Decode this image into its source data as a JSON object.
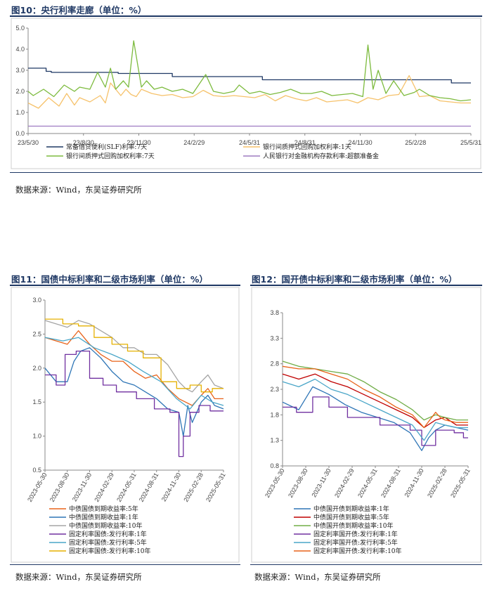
{
  "figures": {
    "fig10": {
      "title": "图10：央行利率走廊（单位：%）",
      "source": "数据来源：Wind，东吴证券研究所"
    },
    "fig11": {
      "title": "图11：国债中标利率和二级市场利率（单位：%）",
      "source": "数据来源：Wind，东吴证券研究所"
    },
    "fig12": {
      "title": "图12：国开债中标利率和二级市场利率（单位：%）",
      "source": "数据来源：Wind，东吴证券研究所"
    }
  },
  "colors": {
    "slf": "#1f3864",
    "repo_1d": "#f6c26b",
    "repo_7d": "#7dbb3e",
    "rrr": "#9e7cc1",
    "orange": "#e8631a",
    "blue": "#2e75b6",
    "gray": "#a5a5a5",
    "purple": "#7030a0",
    "lightblue": "#4aa6c8",
    "gold": "#e5b100",
    "red": "#c00000",
    "green": "#70ad47",
    "rule": "#1f3864"
  },
  "chart_data": [
    {
      "id": "fig10",
      "type": "line",
      "title": "央行利率走廊（单位：%）",
      "x_ticks": [
        "23/5/30",
        "23/8/30",
        "23/11/30",
        "24/2/29",
        "24/5/31",
        "24/8/31",
        "24/11/30",
        "25/2/28",
        "25/5/31"
      ],
      "ylim": [
        0,
        5
      ],
      "y_ticks": [
        "0.0",
        "1.0",
        "2.0",
        "3.0",
        "4.0",
        "5.0"
      ],
      "series": [
        {
          "name": "常备借贷便利(SLF)利率:7天",
          "color_key": "slf",
          "x": [
            0,
            0.35,
            0.35,
            0.45,
            0.45,
            1.0,
            1.0,
            1.75,
            1.75,
            2.8,
            2.8,
            4.55,
            4.55,
            8.22,
            8.22,
            8.6
          ],
          "values": [
            3.1,
            3.1,
            2.95,
            2.95,
            2.9,
            2.9,
            2.9,
            2.9,
            2.85,
            2.85,
            2.7,
            2.7,
            2.55,
            2.55,
            2.4,
            2.4
          ]
        },
        {
          "name": "银行间质押式回购加权利率:1天",
          "color_key": "repo_1d",
          "x": [
            0,
            0.2,
            0.4,
            0.6,
            0.75,
            0.9,
            1.0,
            1.2,
            1.4,
            1.5,
            1.6,
            1.8,
            1.9,
            2.0,
            2.1,
            2.2,
            2.4,
            2.6,
            2.8,
            3.0,
            3.2,
            3.4,
            3.6,
            3.8,
            4.0,
            4.2,
            4.4,
            4.6,
            4.8,
            5.0,
            5.2,
            5.4,
            5.6,
            5.8,
            6.0,
            6.2,
            6.4,
            6.6,
            6.8,
            7.0,
            7.2,
            7.4,
            7.6,
            7.8,
            8.0,
            8.2,
            8.4,
            8.6
          ],
          "values": [
            1.45,
            1.2,
            1.7,
            1.3,
            1.9,
            1.35,
            1.7,
            1.5,
            1.8,
            1.45,
            2.4,
            1.8,
            2.1,
            1.85,
            1.75,
            2.1,
            1.9,
            1.8,
            1.85,
            1.7,
            1.75,
            2.05,
            1.8,
            1.75,
            1.8,
            1.75,
            1.7,
            1.85,
            1.55,
            1.8,
            1.65,
            1.55,
            1.7,
            1.5,
            1.55,
            1.6,
            1.45,
            1.7,
            1.6,
            1.8,
            1.85,
            2.75,
            1.75,
            1.8,
            1.55,
            1.5,
            1.45,
            1.45
          ]
        },
        {
          "name": "银行间质押式回购加权利率:7天",
          "color_key": "repo_7d",
          "x": [
            0,
            0.1,
            0.3,
            0.5,
            0.7,
            0.9,
            1.0,
            1.2,
            1.35,
            1.5,
            1.6,
            1.7,
            1.85,
            1.95,
            2.05,
            2.2,
            2.3,
            2.45,
            2.6,
            2.8,
            3.0,
            3.2,
            3.45,
            3.6,
            3.8,
            4.0,
            4.1,
            4.3,
            4.5,
            4.7,
            4.9,
            5.1,
            5.3,
            5.5,
            5.7,
            5.9,
            6.1,
            6.3,
            6.5,
            6.6,
            6.7,
            6.8,
            6.95,
            7.1,
            7.3,
            7.5,
            7.6,
            7.8,
            8.0,
            8.2,
            8.4,
            8.6
          ],
          "values": [
            2.0,
            1.8,
            2.1,
            1.75,
            2.3,
            2.0,
            2.2,
            2.1,
            2.9,
            2.2,
            3.1,
            2.1,
            2.5,
            2.2,
            4.4,
            2.2,
            2.5,
            2.1,
            2.2,
            2.0,
            2.1,
            1.9,
            2.8,
            2.0,
            1.9,
            2.0,
            2.3,
            1.9,
            2.0,
            1.85,
            1.95,
            2.1,
            1.9,
            1.9,
            2.0,
            1.8,
            1.85,
            1.9,
            1.75,
            4.2,
            2.1,
            3.0,
            1.9,
            2.5,
            1.8,
            1.95,
            2.1,
            1.8,
            1.7,
            1.65,
            1.55,
            1.6
          ]
        },
        {
          "name": "人民银行对金融机构存款利率:超额准备金",
          "color_key": "rrr",
          "x": [
            0,
            8.6
          ],
          "values": [
            0.35,
            0.35
          ]
        }
      ],
      "legend": [
        "常备借贷便利(SLF)利率:7天",
        "银行间质押式回购加权利率:1天",
        "银行间质押式回购加权利率:7天",
        "人民银行对金融机构存款利率:超额准备金"
      ]
    },
    {
      "id": "fig11",
      "type": "line",
      "title": "国债中标利率和二级市场利率（单位：%）",
      "x_ticks": [
        "2023-05-30",
        "2023-08-30",
        "2023-11-30",
        "2024-02-29",
        "2024-05-31",
        "2024-08-31",
        "2024-11-30",
        "2025-02-28",
        "2025-05-31"
      ],
      "ylim": [
        0.5,
        3.0
      ],
      "y_ticks": [
        "0.5",
        "1.0",
        "1.5",
        "2.0",
        "2.5",
        "3.0"
      ],
      "series": [
        {
          "name": "中债国债到期收益率:5年",
          "color_key": "orange",
          "x": [
            0,
            0.5,
            1.0,
            1.5,
            2.0,
            2.5,
            3.0,
            3.5,
            4.0,
            4.5,
            5.0,
            5.5,
            6.0,
            6.3,
            6.6,
            7.0,
            7.3,
            7.6,
            8.0
          ],
          "values": [
            2.45,
            2.4,
            2.35,
            2.55,
            2.35,
            2.2,
            2.1,
            2.1,
            1.95,
            1.85,
            1.9,
            1.7,
            1.55,
            1.5,
            1.45,
            1.6,
            1.7,
            1.55,
            1.55
          ]
        },
        {
          "name": "中债国债到期收益率:1年",
          "color_key": "blue",
          "x": [
            0,
            0.5,
            1.0,
            1.3,
            1.6,
            2.0,
            2.5,
            3.0,
            3.5,
            4.0,
            4.5,
            5.0,
            5.5,
            6.0,
            6.2,
            6.4,
            6.6,
            7.0,
            7.3,
            7.6,
            8.0
          ],
          "values": [
            2.0,
            1.8,
            1.8,
            2.1,
            2.25,
            2.3,
            2.15,
            1.95,
            1.8,
            1.75,
            1.65,
            1.55,
            1.4,
            1.35,
            1.0,
            1.45,
            1.2,
            1.5,
            1.6,
            1.45,
            1.4
          ]
        },
        {
          "name": "中债国债到期收益率:10年",
          "color_key": "gray",
          "x": [
            0,
            0.5,
            1.0,
            1.5,
            2.0,
            2.5,
            3.0,
            3.5,
            4.0,
            4.5,
            5.0,
            5.5,
            6.0,
            6.3,
            6.6,
            7.0,
            7.3,
            7.6,
            8.0
          ],
          "values": [
            2.7,
            2.65,
            2.6,
            2.7,
            2.65,
            2.55,
            2.45,
            2.3,
            2.3,
            2.2,
            2.2,
            2.05,
            1.8,
            1.7,
            1.65,
            1.8,
            1.9,
            1.75,
            1.7
          ]
        },
        {
          "name": "固定利率国债:发行利率:1年",
          "color_key": "purple",
          "x": [
            0,
            0.5,
            0.5,
            0.9,
            0.9,
            1.4,
            1.4,
            2.0,
            2.0,
            2.6,
            2.6,
            3.2,
            3.2,
            4.1,
            4.1,
            4.9,
            4.9,
            5.6,
            5.6,
            6.0,
            6.0,
            6.2,
            6.2,
            6.5,
            6.5,
            6.9,
            6.9,
            7.4,
            7.4,
            8.0
          ],
          "values": [
            1.9,
            1.9,
            1.75,
            1.75,
            2.2,
            2.2,
            2.25,
            2.25,
            1.85,
            1.85,
            1.75,
            1.75,
            1.65,
            1.65,
            1.55,
            1.55,
            1.4,
            1.4,
            1.35,
            1.35,
            0.7,
            0.7,
            1.0,
            1.0,
            1.35,
            1.35,
            1.45,
            1.45,
            1.37,
            1.37
          ]
        },
        {
          "name": "固定利率国债:发行利率:5年",
          "color_key": "lightblue",
          "x": [
            0,
            0.8,
            1.5,
            2.2,
            3.0,
            3.7,
            4.4,
            5.2,
            5.9,
            6.5,
            7.0,
            7.5,
            8.0
          ],
          "values": [
            2.45,
            2.4,
            2.45,
            2.3,
            2.2,
            2.1,
            1.95,
            1.8,
            1.55,
            1.4,
            1.6,
            1.5,
            1.45
          ]
        },
        {
          "name": "固定利率国债:发行利率:10年",
          "color_key": "gold",
          "x": [
            0,
            0.8,
            0.8,
            1.5,
            1.5,
            2.2,
            2.2,
            3.0,
            3.0,
            3.7,
            3.7,
            4.4,
            4.4,
            5.2,
            5.2,
            5.9,
            5.9,
            6.5,
            6.5,
            7.0,
            7.0,
            7.5,
            7.5,
            8.0
          ],
          "values": [
            2.72,
            2.72,
            2.65,
            2.65,
            2.62,
            2.62,
            2.45,
            2.45,
            2.35,
            2.35,
            2.25,
            2.25,
            2.15,
            2.15,
            1.8,
            1.8,
            1.7,
            1.7,
            1.75,
            1.75,
            1.65,
            1.65,
            1.7,
            1.7
          ]
        }
      ],
      "legend": [
        "中债国债到期收益率:5年",
        "中债国债到期收益率:1年",
        "中债国债到期收益率:10年",
        "固定利率国债:发行利率:1年",
        "固定利率国债:发行利率:5年",
        "固定利率国债:发行利率:10年"
      ]
    },
    {
      "id": "fig12",
      "type": "line",
      "title": "国开债中标利率和二级市场利率（单位：%）",
      "x_ticks": [
        "2023-05-30",
        "2023-08-30",
        "2023-11-30",
        "2024-02-29",
        "2024-05-31",
        "2024-08-31",
        "2024-11-30",
        "2025-02-28",
        "2025-05-31"
      ],
      "ylim": [
        0.8,
        3.8
      ],
      "y_ticks": [
        "0.8",
        "1.3",
        "1.8",
        "2.3",
        "2.8",
        "3.3",
        "3.8"
      ],
      "series": [
        {
          "name": "中债国开债到期收益率:1年",
          "color_key": "blue",
          "x": [
            0,
            0.7,
            1.3,
            2.0,
            2.7,
            3.4,
            4.1,
            4.8,
            5.5,
            6.0,
            6.3,
            6.6,
            7.0,
            7.5,
            8.0
          ],
          "values": [
            2.05,
            1.9,
            2.35,
            2.2,
            2.0,
            1.85,
            1.75,
            1.65,
            1.45,
            1.1,
            1.35,
            1.5,
            1.6,
            1.55,
            1.5
          ]
        },
        {
          "name": "中债国开债到期收益率:5年",
          "color_key": "red",
          "x": [
            0,
            0.7,
            1.4,
            2.1,
            2.8,
            3.5,
            4.2,
            4.9,
            5.6,
            6.1,
            6.6,
            7.0,
            7.5,
            8.0
          ],
          "values": [
            2.6,
            2.5,
            2.6,
            2.45,
            2.35,
            2.2,
            2.05,
            1.9,
            1.75,
            1.55,
            1.7,
            1.75,
            1.6,
            1.6
          ]
        },
        {
          "name": "中债国开债到期收益率:10年",
          "color_key": "green",
          "x": [
            0,
            0.7,
            1.4,
            2.1,
            2.8,
            3.5,
            4.2,
            4.9,
            5.6,
            6.1,
            6.6,
            7.0,
            7.5,
            8.0
          ],
          "values": [
            2.85,
            2.75,
            2.7,
            2.65,
            2.6,
            2.45,
            2.25,
            2.1,
            1.9,
            1.7,
            1.8,
            1.75,
            1.7,
            1.7
          ]
        },
        {
          "name": "固定利率国开债:发行利率:1年",
          "color_key": "purple",
          "x": [
            0,
            0.6,
            0.6,
            1.3,
            1.3,
            2.0,
            2.0,
            2.8,
            2.8,
            4.2,
            4.2,
            5.5,
            5.5,
            6.0,
            6.0,
            6.6,
            6.6,
            7.4,
            7.4,
            7.8,
            7.8,
            8.0
          ],
          "values": [
            1.95,
            1.95,
            1.85,
            1.85,
            2.15,
            2.15,
            1.95,
            1.95,
            1.75,
            1.75,
            1.6,
            1.6,
            1.5,
            1.5,
            1.2,
            1.2,
            1.5,
            1.5,
            1.45,
            1.45,
            1.35,
            1.35
          ]
        },
        {
          "name": "固定利率国开债:发行利率:5年",
          "color_key": "lightblue",
          "x": [
            0,
            0.7,
            1.4,
            2.1,
            2.8,
            3.5,
            4.2,
            4.9,
            5.6,
            6.1,
            6.6,
            7.0,
            7.5,
            8.0
          ],
          "values": [
            2.45,
            2.35,
            2.5,
            2.3,
            2.2,
            2.05,
            1.9,
            1.75,
            1.6,
            1.3,
            1.65,
            1.6,
            1.55,
            1.55
          ]
        },
        {
          "name": "固定利率国开债:发行利率:10年",
          "color_key": "orange",
          "x": [
            0,
            0.7,
            1.4,
            2.1,
            2.8,
            3.5,
            4.2,
            4.9,
            5.6,
            6.1,
            6.6,
            6.8,
            7.0,
            7.5,
            8.0
          ],
          "values": [
            2.75,
            2.7,
            2.7,
            2.6,
            2.5,
            2.3,
            2.15,
            1.95,
            1.8,
            1.55,
            1.85,
            1.75,
            1.7,
            1.65,
            1.65
          ]
        }
      ],
      "legend": [
        "中债国开债到期收益率:1年",
        "中债国开债到期收益率:5年",
        "中债国开债到期收益率:10年",
        "固定利率国开债:发行利率:1年",
        "固定利率国开债:发行利率:5年",
        "固定利率国开债:发行利率:10年"
      ]
    }
  ]
}
